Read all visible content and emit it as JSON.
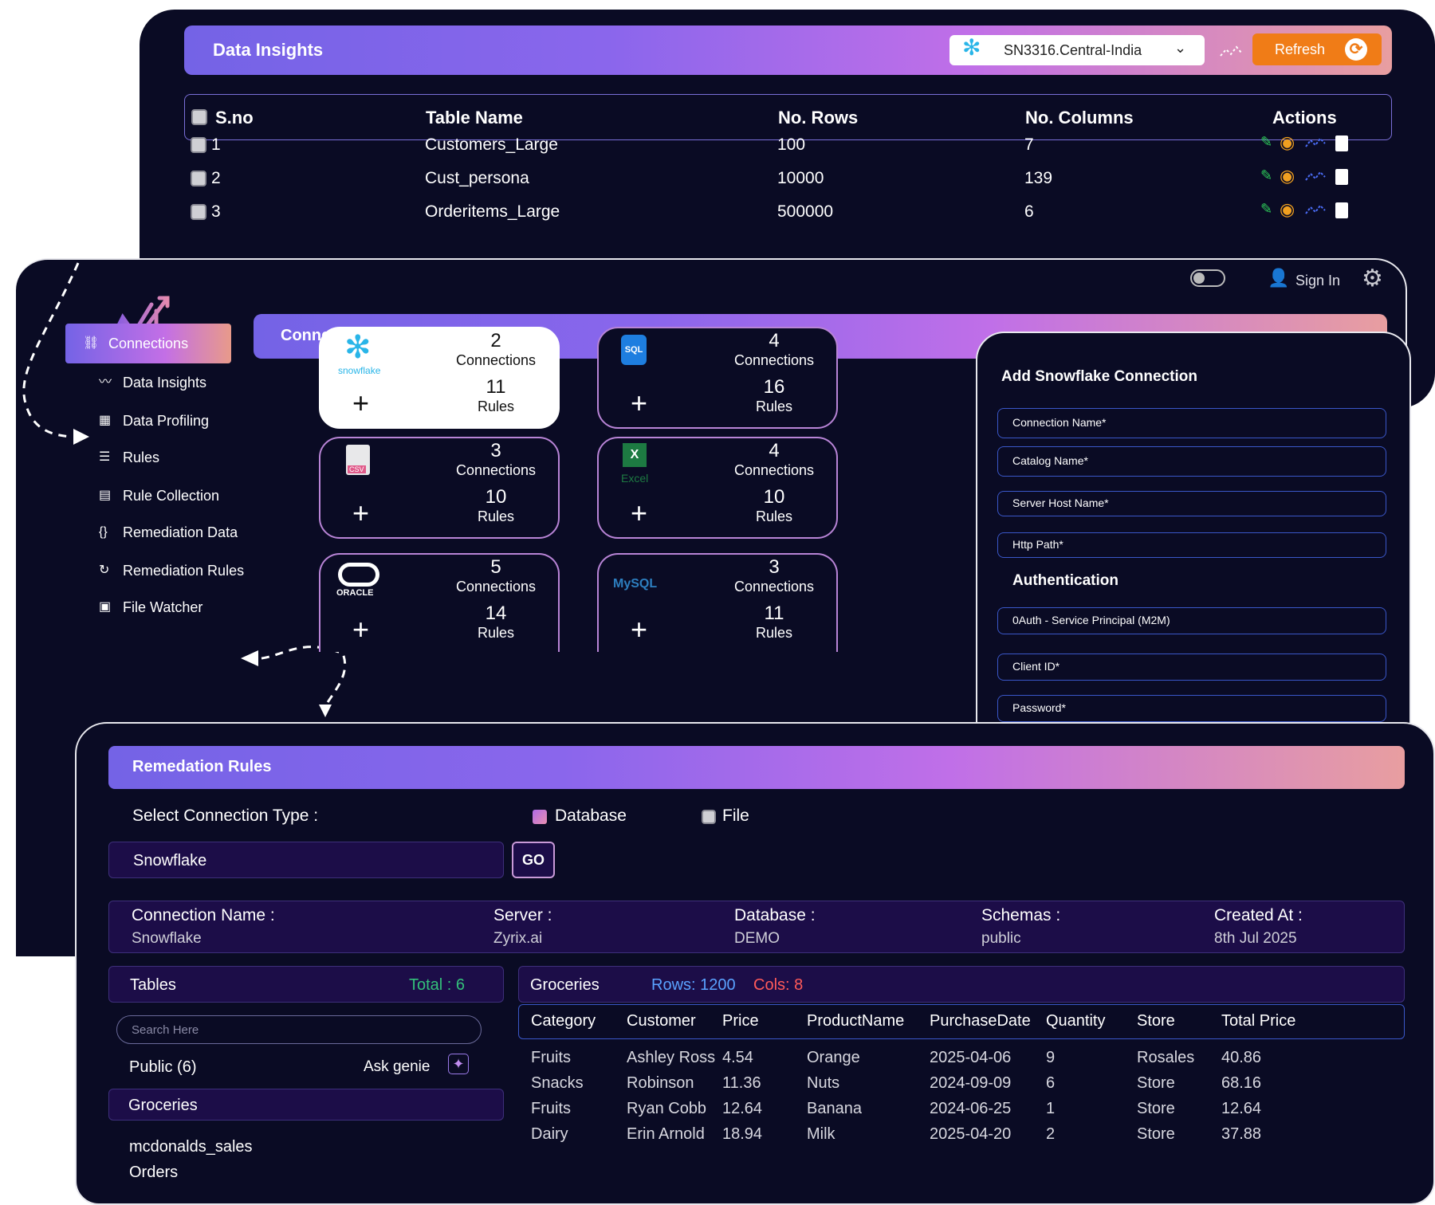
{
  "insights": {
    "title": "Data Insights",
    "connection": "SN3316.Central-India",
    "refresh_label": "Refresh",
    "headers": [
      "S.no",
      "Table Name",
      "No. Rows",
      "No. Columns",
      "Actions"
    ],
    "rows": [
      {
        "sno": "1",
        "name": "Customers_Large",
        "rows": "100",
        "cols": "7"
      },
      {
        "sno": "2",
        "name": "Cust_persona",
        "rows": "10000",
        "cols": "139"
      },
      {
        "sno": "3",
        "name": "Orderitems_Large",
        "rows": "500000",
        "cols": "6"
      }
    ]
  },
  "topbar": {
    "signin": "Sign In"
  },
  "sidebar": {
    "items": [
      {
        "label": "Connections",
        "icon": "link-icon"
      },
      {
        "label": "Data Insights",
        "icon": "trend-icon"
      },
      {
        "label": "Data Profiling",
        "icon": "chart-icon"
      },
      {
        "label": "Rules",
        "icon": "rules-icon"
      },
      {
        "label": "Rule Collection",
        "icon": "collection-icon"
      },
      {
        "label": "Remediation Data",
        "icon": "braces-icon"
      },
      {
        "label": "Remediation Rules",
        "icon": "refresh-gear-icon"
      },
      {
        "label": "File Watcher",
        "icon": "file-search-icon"
      }
    ]
  },
  "connections": {
    "title": "Connections",
    "cards": [
      {
        "brand": "snowflake",
        "count": "2",
        "count_label": "Connections",
        "rules": "11",
        "rules_label": "Rules"
      },
      {
        "brand": "SQL",
        "count": "4",
        "count_label": "Connections",
        "rules": "16",
        "rules_label": "Rules"
      },
      {
        "brand": "CSV",
        "count": "3",
        "count_label": "Connections",
        "rules": "10",
        "rules_label": "Rules"
      },
      {
        "brand": "Excel",
        "count": "4",
        "count_label": "Connections",
        "rules": "10",
        "rules_label": "Rules"
      },
      {
        "brand": "ORACLE",
        "count": "5",
        "count_label": "Connections",
        "rules": "14",
        "rules_label": "Rules"
      },
      {
        "brand": "MySQL",
        "count": "3",
        "count_label": "Connections",
        "rules": "11",
        "rules_label": "Rules"
      }
    ]
  },
  "snowflake_form": {
    "title": "Add Snowflake Connection",
    "fields": [
      "Connection Name*",
      "Catalog Name*",
      "Server Host Name*",
      "Http Path*"
    ],
    "auth_title": "Authentication",
    "auth_method": "0Auth - Service Principal (M2M)",
    "client_id": "Client ID*",
    "password": "Password*"
  },
  "remediation": {
    "title": "Remedation Rules",
    "select_label": "Select Connection Type :",
    "option_database": "Database",
    "option_file": "File",
    "selected_source": "Snowflake",
    "go_label": "GO",
    "info": {
      "conn_label": "Connection Name :",
      "conn_value": "Snowflake",
      "server_label": "Server :",
      "server_value": "Zyrix.ai",
      "db_label": "Database :",
      "db_value": "DEMO",
      "schemas_label": "Schemas :",
      "schemas_value": "public",
      "created_label": "Created At :",
      "created_value": "8th Jul 2025"
    },
    "tables_label": "Tables",
    "tables_total": "Total : 6",
    "search_placeholder": "Search Here",
    "public_label": "Public (6)",
    "ask_genie": "Ask genie",
    "table_list": [
      "Groceries",
      "mcdonalds_sales",
      "Orders"
    ],
    "selected_table": "Groceries",
    "rows_label": "Rows: 1200",
    "cols_label": "Cols: 8",
    "columns": [
      "Category",
      "Customer",
      "Price",
      "ProductName",
      "PurchaseDate",
      "Quantity",
      "Store",
      "Total Price"
    ],
    "data": [
      [
        "Fruits",
        "Ashley Ross",
        "4.54",
        "Orange",
        "2025-04-06",
        "9",
        "Rosales",
        "40.86"
      ],
      [
        "Snacks",
        "Robinson",
        "11.36",
        "Nuts",
        "2024-09-09",
        "6",
        "Store",
        "68.16"
      ],
      [
        "Fruits",
        "Ryan Cobb",
        "12.64",
        "Banana",
        "2024-06-25",
        "1",
        "Store",
        "12.64"
      ],
      [
        "Dairy",
        "Erin Arnold",
        "18.94",
        "Milk",
        "2025-04-20",
        "2",
        "Store",
        "37.88"
      ]
    ]
  }
}
